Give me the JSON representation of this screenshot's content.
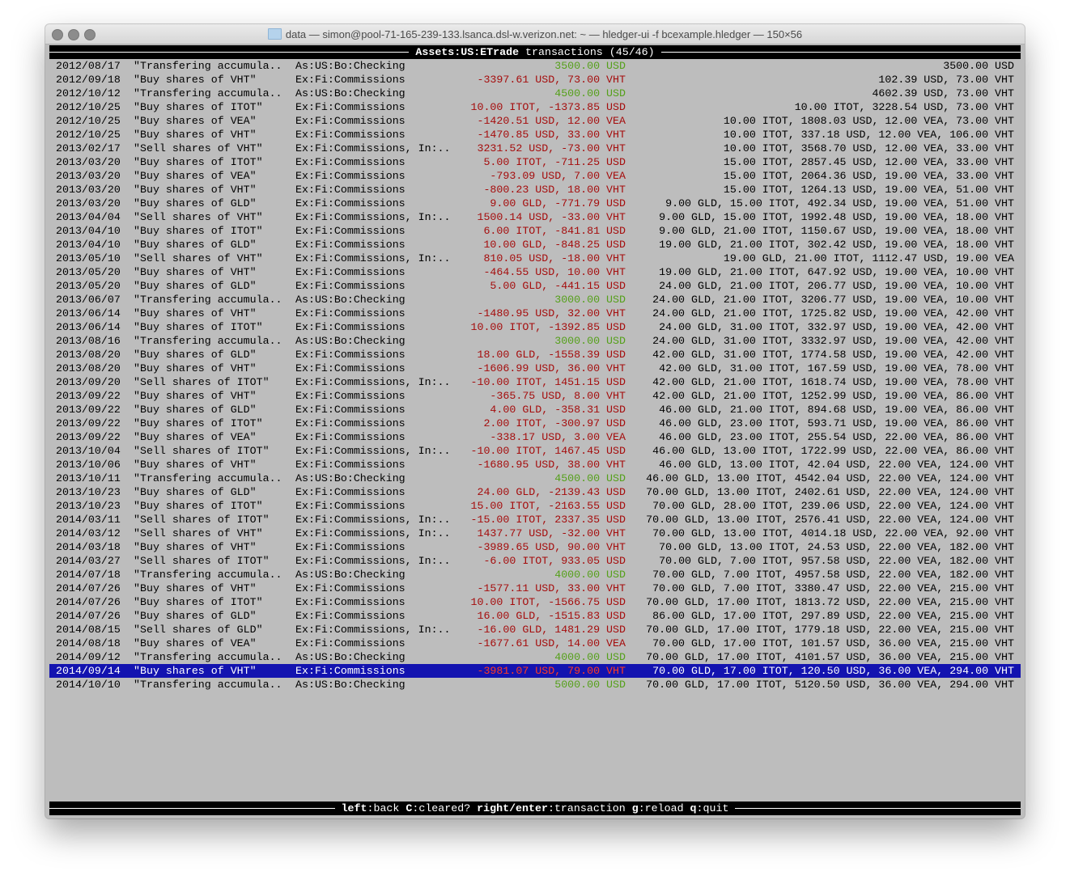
{
  "window": {
    "title": "data — simon@pool-71-165-239-133.lsanca.dsl-w.verizon.net: ~ — hledger-ui -f bcexample.hledger — 150×56"
  },
  "header": {
    "account": "Assets:US:ETrade",
    "suffix": " transactions (45/46)"
  },
  "colors": {
    "positive": "#55a01a",
    "negative": "#a50d0d",
    "selection": "#1313b0",
    "background": "#bdbdbd"
  },
  "selected_index": 44,
  "rows": [
    {
      "date": "2012/08/17",
      "desc": "\"Transfering accumula..",
      "account": "As:US:Bo:Checking",
      "amount": "3500.00 USD",
      "balance": "3500.00 USD"
    },
    {
      "date": "2012/09/18",
      "desc": "\"Buy shares of VHT\"",
      "account": "Ex:Fi:Commissions",
      "amount": "-3397.61 USD, 73.00 VHT",
      "balance": "102.39 USD, 73.00 VHT"
    },
    {
      "date": "2012/10/12",
      "desc": "\"Transfering accumula..",
      "account": "As:US:Bo:Checking",
      "amount": "4500.00 USD",
      "balance": "4602.39 USD, 73.00 VHT"
    },
    {
      "date": "2012/10/25",
      "desc": "\"Buy shares of ITOT\"",
      "account": "Ex:Fi:Commissions",
      "amount": "10.00 ITOT, -1373.85 USD",
      "balance": "10.00 ITOT, 3228.54 USD, 73.00 VHT"
    },
    {
      "date": "2012/10/25",
      "desc": "\"Buy shares of VEA\"",
      "account": "Ex:Fi:Commissions",
      "amount": "-1420.51 USD, 12.00 VEA",
      "balance": "10.00 ITOT, 1808.03 USD, 12.00 VEA, 73.00 VHT"
    },
    {
      "date": "2012/10/25",
      "desc": "\"Buy shares of VHT\"",
      "account": "Ex:Fi:Commissions",
      "amount": "-1470.85 USD, 33.00 VHT",
      "balance": "10.00 ITOT, 337.18 USD, 12.00 VEA, 106.00 VHT"
    },
    {
      "date": "2013/02/17",
      "desc": "\"Sell shares of VHT\"",
      "account": "Ex:Fi:Commissions, In:..",
      "amount": "3231.52 USD, -73.00 VHT",
      "balance": "10.00 ITOT, 3568.70 USD, 12.00 VEA, 33.00 VHT"
    },
    {
      "date": "2013/03/20",
      "desc": "\"Buy shares of ITOT\"",
      "account": "Ex:Fi:Commissions",
      "amount": "5.00 ITOT, -711.25 USD",
      "balance": "15.00 ITOT, 2857.45 USD, 12.00 VEA, 33.00 VHT"
    },
    {
      "date": "2013/03/20",
      "desc": "\"Buy shares of VEA\"",
      "account": "Ex:Fi:Commissions",
      "amount": "-793.09 USD, 7.00 VEA",
      "balance": "15.00 ITOT, 2064.36 USD, 19.00 VEA, 33.00 VHT"
    },
    {
      "date": "2013/03/20",
      "desc": "\"Buy shares of VHT\"",
      "account": "Ex:Fi:Commissions",
      "amount": "-800.23 USD, 18.00 VHT",
      "balance": "15.00 ITOT, 1264.13 USD, 19.00 VEA, 51.00 VHT"
    },
    {
      "date": "2013/03/20",
      "desc": "\"Buy shares of GLD\"",
      "account": "Ex:Fi:Commissions",
      "amount": "9.00 GLD, -771.79 USD",
      "balance": "9.00 GLD, 15.00 ITOT, 492.34 USD, 19.00 VEA, 51.00 VHT"
    },
    {
      "date": "2013/04/04",
      "desc": "\"Sell shares of VHT\"",
      "account": "Ex:Fi:Commissions, In:..",
      "amount": "1500.14 USD, -33.00 VHT",
      "balance": "9.00 GLD, 15.00 ITOT, 1992.48 USD, 19.00 VEA, 18.00 VHT"
    },
    {
      "date": "2013/04/10",
      "desc": "\"Buy shares of ITOT\"",
      "account": "Ex:Fi:Commissions",
      "amount": "6.00 ITOT, -841.81 USD",
      "balance": "9.00 GLD, 21.00 ITOT, 1150.67 USD, 19.00 VEA, 18.00 VHT"
    },
    {
      "date": "2013/04/10",
      "desc": "\"Buy shares of GLD\"",
      "account": "Ex:Fi:Commissions",
      "amount": "10.00 GLD, -848.25 USD",
      "balance": "19.00 GLD, 21.00 ITOT, 302.42 USD, 19.00 VEA, 18.00 VHT"
    },
    {
      "date": "2013/05/10",
      "desc": "\"Sell shares of VHT\"",
      "account": "Ex:Fi:Commissions, In:..",
      "amount": "810.05 USD, -18.00 VHT",
      "balance": "19.00 GLD, 21.00 ITOT, 1112.47 USD, 19.00 VEA"
    },
    {
      "date": "2013/05/20",
      "desc": "\"Buy shares of VHT\"",
      "account": "Ex:Fi:Commissions",
      "amount": "-464.55 USD, 10.00 VHT",
      "balance": "19.00 GLD, 21.00 ITOT, 647.92 USD, 19.00 VEA, 10.00 VHT"
    },
    {
      "date": "2013/05/20",
      "desc": "\"Buy shares of GLD\"",
      "account": "Ex:Fi:Commissions",
      "amount": "5.00 GLD, -441.15 USD",
      "balance": "24.00 GLD, 21.00 ITOT, 206.77 USD, 19.00 VEA, 10.00 VHT"
    },
    {
      "date": "2013/06/07",
      "desc": "\"Transfering accumula..",
      "account": "As:US:Bo:Checking",
      "amount": "3000.00 USD",
      "balance": "24.00 GLD, 21.00 ITOT, 3206.77 USD, 19.00 VEA, 10.00 VHT"
    },
    {
      "date": "2013/06/14",
      "desc": "\"Buy shares of VHT\"",
      "account": "Ex:Fi:Commissions",
      "amount": "-1480.95 USD, 32.00 VHT",
      "balance": "24.00 GLD, 21.00 ITOT, 1725.82 USD, 19.00 VEA, 42.00 VHT"
    },
    {
      "date": "2013/06/14",
      "desc": "\"Buy shares of ITOT\"",
      "account": "Ex:Fi:Commissions",
      "amount": "10.00 ITOT, -1392.85 USD",
      "balance": "24.00 GLD, 31.00 ITOT, 332.97 USD, 19.00 VEA, 42.00 VHT"
    },
    {
      "date": "2013/08/16",
      "desc": "\"Transfering accumula..",
      "account": "As:US:Bo:Checking",
      "amount": "3000.00 USD",
      "balance": "24.00 GLD, 31.00 ITOT, 3332.97 USD, 19.00 VEA, 42.00 VHT"
    },
    {
      "date": "2013/08/20",
      "desc": "\"Buy shares of GLD\"",
      "account": "Ex:Fi:Commissions",
      "amount": "18.00 GLD, -1558.39 USD",
      "balance": "42.00 GLD, 31.00 ITOT, 1774.58 USD, 19.00 VEA, 42.00 VHT"
    },
    {
      "date": "2013/08/20",
      "desc": "\"Buy shares of VHT\"",
      "account": "Ex:Fi:Commissions",
      "amount": "-1606.99 USD, 36.00 VHT",
      "balance": "42.00 GLD, 31.00 ITOT, 167.59 USD, 19.00 VEA, 78.00 VHT"
    },
    {
      "date": "2013/09/20",
      "desc": "\"Sell shares of ITOT\"",
      "account": "Ex:Fi:Commissions, In:..",
      "amount": "-10.00 ITOT, 1451.15 USD",
      "balance": "42.00 GLD, 21.00 ITOT, 1618.74 USD, 19.00 VEA, 78.00 VHT"
    },
    {
      "date": "2013/09/22",
      "desc": "\"Buy shares of VHT\"",
      "account": "Ex:Fi:Commissions",
      "amount": "-365.75 USD, 8.00 VHT",
      "balance": "42.00 GLD, 21.00 ITOT, 1252.99 USD, 19.00 VEA, 86.00 VHT"
    },
    {
      "date": "2013/09/22",
      "desc": "\"Buy shares of GLD\"",
      "account": "Ex:Fi:Commissions",
      "amount": "4.00 GLD, -358.31 USD",
      "balance": "46.00 GLD, 21.00 ITOT, 894.68 USD, 19.00 VEA, 86.00 VHT"
    },
    {
      "date": "2013/09/22",
      "desc": "\"Buy shares of ITOT\"",
      "account": "Ex:Fi:Commissions",
      "amount": "2.00 ITOT, -300.97 USD",
      "balance": "46.00 GLD, 23.00 ITOT, 593.71 USD, 19.00 VEA, 86.00 VHT"
    },
    {
      "date": "2013/09/22",
      "desc": "\"Buy shares of VEA\"",
      "account": "Ex:Fi:Commissions",
      "amount": "-338.17 USD, 3.00 VEA",
      "balance": "46.00 GLD, 23.00 ITOT, 255.54 USD, 22.00 VEA, 86.00 VHT"
    },
    {
      "date": "2013/10/04",
      "desc": "\"Sell shares of ITOT\"",
      "account": "Ex:Fi:Commissions, In:..",
      "amount": "-10.00 ITOT, 1467.45 USD",
      "balance": "46.00 GLD, 13.00 ITOT, 1722.99 USD, 22.00 VEA, 86.00 VHT"
    },
    {
      "date": "2013/10/06",
      "desc": "\"Buy shares of VHT\"",
      "account": "Ex:Fi:Commissions",
      "amount": "-1680.95 USD, 38.00 VHT",
      "balance": "46.00 GLD, 13.00 ITOT, 42.04 USD, 22.00 VEA, 124.00 VHT"
    },
    {
      "date": "2013/10/11",
      "desc": "\"Transfering accumula..",
      "account": "As:US:Bo:Checking",
      "amount": "4500.00 USD",
      "balance": "46.00 GLD, 13.00 ITOT, 4542.04 USD, 22.00 VEA, 124.00 VHT"
    },
    {
      "date": "2013/10/23",
      "desc": "\"Buy shares of GLD\"",
      "account": "Ex:Fi:Commissions",
      "amount": "24.00 GLD, -2139.43 USD",
      "balance": "70.00 GLD, 13.00 ITOT, 2402.61 USD, 22.00 VEA, 124.00 VHT"
    },
    {
      "date": "2013/10/23",
      "desc": "\"Buy shares of ITOT\"",
      "account": "Ex:Fi:Commissions",
      "amount": "15.00 ITOT, -2163.55 USD",
      "balance": "70.00 GLD, 28.00 ITOT, 239.06 USD, 22.00 VEA, 124.00 VHT"
    },
    {
      "date": "2014/03/11",
      "desc": "\"Sell shares of ITOT\"",
      "account": "Ex:Fi:Commissions, In:..",
      "amount": "-15.00 ITOT, 2337.35 USD",
      "balance": "70.00 GLD, 13.00 ITOT, 2576.41 USD, 22.00 VEA, 124.00 VHT"
    },
    {
      "date": "2014/03/12",
      "desc": "\"Sell shares of VHT\"",
      "account": "Ex:Fi:Commissions, In:..",
      "amount": "1437.77 USD, -32.00 VHT",
      "balance": "70.00 GLD, 13.00 ITOT, 4014.18 USD, 22.00 VEA, 92.00 VHT"
    },
    {
      "date": "2014/03/18",
      "desc": "\"Buy shares of VHT\"",
      "account": "Ex:Fi:Commissions",
      "amount": "-3989.65 USD, 90.00 VHT",
      "balance": "70.00 GLD, 13.00 ITOT, 24.53 USD, 22.00 VEA, 182.00 VHT"
    },
    {
      "date": "2014/03/27",
      "desc": "\"Sell shares of ITOT\"",
      "account": "Ex:Fi:Commissions, In:..",
      "amount": "-6.00 ITOT, 933.05 USD",
      "balance": "70.00 GLD, 7.00 ITOT, 957.58 USD, 22.00 VEA, 182.00 VHT"
    },
    {
      "date": "2014/07/18",
      "desc": "\"Transfering accumula..",
      "account": "As:US:Bo:Checking",
      "amount": "4000.00 USD",
      "balance": "70.00 GLD, 7.00 ITOT, 4957.58 USD, 22.00 VEA, 182.00 VHT"
    },
    {
      "date": "2014/07/26",
      "desc": "\"Buy shares of VHT\"",
      "account": "Ex:Fi:Commissions",
      "amount": "-1577.11 USD, 33.00 VHT",
      "balance": "70.00 GLD, 7.00 ITOT, 3380.47 USD, 22.00 VEA, 215.00 VHT"
    },
    {
      "date": "2014/07/26",
      "desc": "\"Buy shares of ITOT\"",
      "account": "Ex:Fi:Commissions",
      "amount": "10.00 ITOT, -1566.75 USD",
      "balance": "70.00 GLD, 17.00 ITOT, 1813.72 USD, 22.00 VEA, 215.00 VHT"
    },
    {
      "date": "2014/07/26",
      "desc": "\"Buy shares of GLD\"",
      "account": "Ex:Fi:Commissions",
      "amount": "16.00 GLD, -1515.83 USD",
      "balance": "86.00 GLD, 17.00 ITOT, 297.89 USD, 22.00 VEA, 215.00 VHT"
    },
    {
      "date": "2014/08/15",
      "desc": "\"Sell shares of GLD\"",
      "account": "Ex:Fi:Commissions, In:..",
      "amount": "-16.00 GLD, 1481.29 USD",
      "balance": "70.00 GLD, 17.00 ITOT, 1779.18 USD, 22.00 VEA, 215.00 VHT"
    },
    {
      "date": "2014/08/18",
      "desc": "\"Buy shares of VEA\"",
      "account": "Ex:Fi:Commissions",
      "amount": "-1677.61 USD, 14.00 VEA",
      "balance": "70.00 GLD, 17.00 ITOT, 101.57 USD, 36.00 VEA, 215.00 VHT"
    },
    {
      "date": "2014/09/12",
      "desc": "\"Transfering accumula..",
      "account": "As:US:Bo:Checking",
      "amount": "4000.00 USD",
      "balance": "70.00 GLD, 17.00 ITOT, 4101.57 USD, 36.00 VEA, 215.00 VHT"
    },
    {
      "date": "2014/09/14",
      "desc": "\"Buy shares of VHT\"",
      "account": "Ex:Fi:Commissions",
      "amount": "-3981.07 USD, 79.00 VHT",
      "balance": "70.00 GLD, 17.00 ITOT, 120.50 USD, 36.00 VEA, 294.00 VHT"
    },
    {
      "date": "2014/10/10",
      "desc": "\"Transfering accumula..",
      "account": "As:US:Bo:Checking",
      "amount": "5000.00 USD",
      "balance": "70.00 GLD, 17.00 ITOT, 5120.50 USD, 36.00 VEA, 294.00 VHT"
    }
  ],
  "footer": {
    "keys": [
      {
        "key": "left",
        "action": "back"
      },
      {
        "key": "C",
        "action": "cleared?"
      },
      {
        "key": "right/enter",
        "action": "transaction"
      },
      {
        "key": "g",
        "action": "reload"
      },
      {
        "key": "q",
        "action": "quit"
      }
    ]
  }
}
